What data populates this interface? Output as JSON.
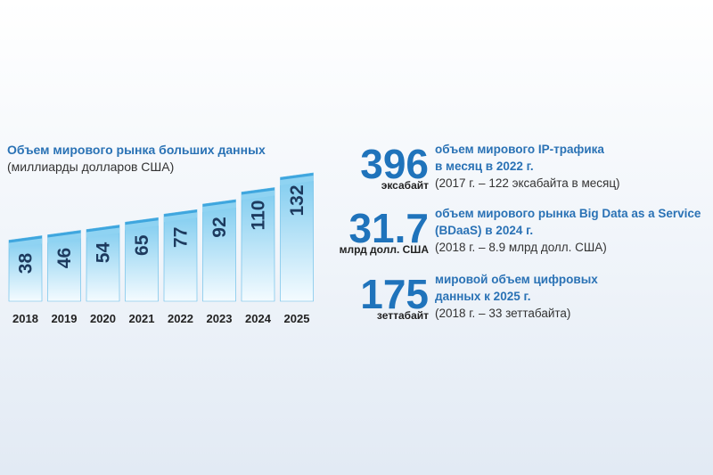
{
  "chart_data": {
    "type": "bar",
    "title": "Объем мирового рынка больших данных",
    "subtitle": "(миллиарды долларов США)",
    "categories": [
      "2018",
      "2019",
      "2020",
      "2021",
      "2022",
      "2023",
      "2024",
      "2025"
    ],
    "values": [
      38,
      46,
      54,
      65,
      77,
      92,
      110,
      132
    ],
    "color": "#8fd3f2"
  },
  "stats": [
    {
      "value": "396",
      "unit": "эксабайт",
      "lines": [
        "объем мирового IP-трафика",
        "в месяц в 2022 г.",
        "(2017 г. – 122 эксабайта в месяц)"
      ]
    },
    {
      "value": "31.7",
      "unit": "млрд долл. США",
      "lines": [
        "объем мирового рынка Big Data as a Service",
        "(BDaaS) в 2024 г.",
        "(2018 г. – 8.9 млрд долл. США)"
      ]
    },
    {
      "value": "175",
      "unit": "зеттабайт",
      "lines": [
        "мировой объем цифровых",
        "данных к 2025 г.",
        "(2018 г. – 33 зеттабайта)"
      ]
    }
  ]
}
